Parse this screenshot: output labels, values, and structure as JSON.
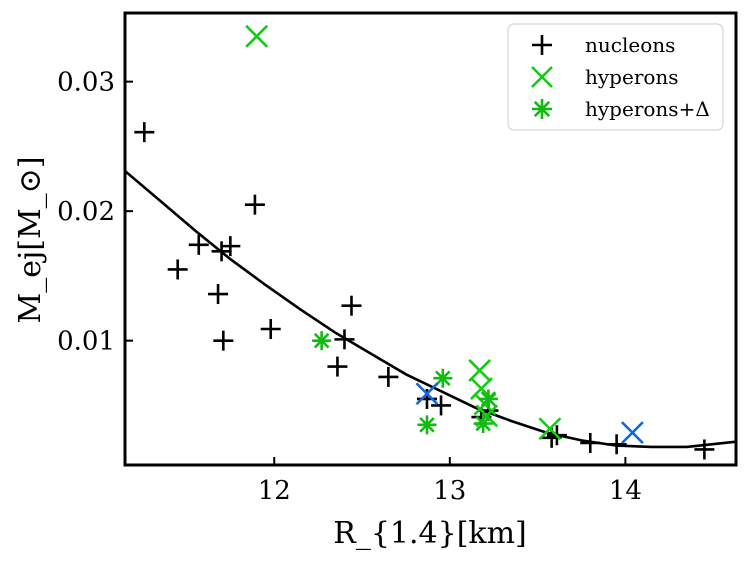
{
  "chart_data": {
    "type": "scatter",
    "title": "",
    "xlabel": "R_{1.4}[km]",
    "ylabel": "M_ej[M_⊙]",
    "xlim": [
      11.15,
      14.63
    ],
    "ylim": [
      0.0004,
      0.0353
    ],
    "x_ticks": [
      12,
      13,
      14
    ],
    "x_tick_labels": [
      "12",
      "13",
      "14"
    ],
    "y_ticks": [
      0.01,
      0.02,
      0.03
    ],
    "y_tick_labels": [
      "0.01",
      "0.02",
      "0.03"
    ],
    "grid": false,
    "legend_position": "top-right",
    "fit_curve": {
      "name": "fit",
      "x": [
        11.15,
        11.35,
        11.55,
        11.75,
        11.95,
        12.15,
        12.35,
        12.55,
        12.75,
        12.95,
        13.15,
        13.35,
        13.55,
        13.75,
        13.95,
        14.15,
        14.35,
        14.63
      ],
      "y": [
        0.0231,
        0.0208,
        0.0185,
        0.0163,
        0.0143,
        0.0124,
        0.0106,
        0.009,
        0.0074,
        0.0061,
        0.0048,
        0.0038,
        0.0029,
        0.0023,
        0.0019,
        0.0018,
        0.0018,
        0.0022
      ]
    },
    "series": [
      {
        "name": "nucleons",
        "marker": "plus",
        "color": "#000000",
        "points": [
          [
            11.26,
            0.0261
          ],
          [
            11.45,
            0.0155
          ],
          [
            11.57,
            0.0174
          ],
          [
            11.68,
            0.0136
          ],
          [
            11.7,
            0.0169
          ],
          [
            11.71,
            0.01
          ],
          [
            11.75,
            0.0173
          ],
          [
            11.89,
            0.0205
          ],
          [
            11.98,
            0.0109
          ],
          [
            12.36,
            0.008
          ],
          [
            12.4,
            0.0101
          ],
          [
            12.44,
            0.0127
          ],
          [
            12.65,
            0.0072
          ],
          [
            12.87,
            0.0055
          ],
          [
            12.95,
            0.005
          ],
          [
            13.18,
            0.0041
          ],
          [
            13.22,
            0.0046
          ],
          [
            13.58,
            0.0025
          ],
          [
            13.61,
            0.0027
          ],
          [
            13.8,
            0.0021
          ],
          [
            13.95,
            0.002
          ],
          [
            14.45,
            0.0016
          ]
        ]
      },
      {
        "name": "hyperons",
        "marker": "x",
        "color": "#11cc11",
        "points": [
          [
            11.9,
            0.0335
          ],
          [
            13.17,
            0.0077
          ],
          [
            13.18,
            0.0063
          ],
          [
            13.2,
            0.0051
          ],
          [
            13.21,
            0.0042
          ],
          [
            13.57,
            0.0032
          ]
        ]
      },
      {
        "name": "hyperons+Δ",
        "marker": "asterisk",
        "color": "#11bb11",
        "points": [
          [
            12.27,
            0.01
          ],
          [
            12.87,
            0.0035
          ],
          [
            12.96,
            0.0071
          ],
          [
            13.19,
            0.0036
          ],
          [
            13.22,
            0.0055
          ]
        ]
      },
      {
        "name": "",
        "marker": "x",
        "color": "#1166dd",
        "points": [
          [
            12.87,
            0.0059
          ],
          [
            14.04,
            0.0029
          ]
        ]
      }
    ]
  }
}
